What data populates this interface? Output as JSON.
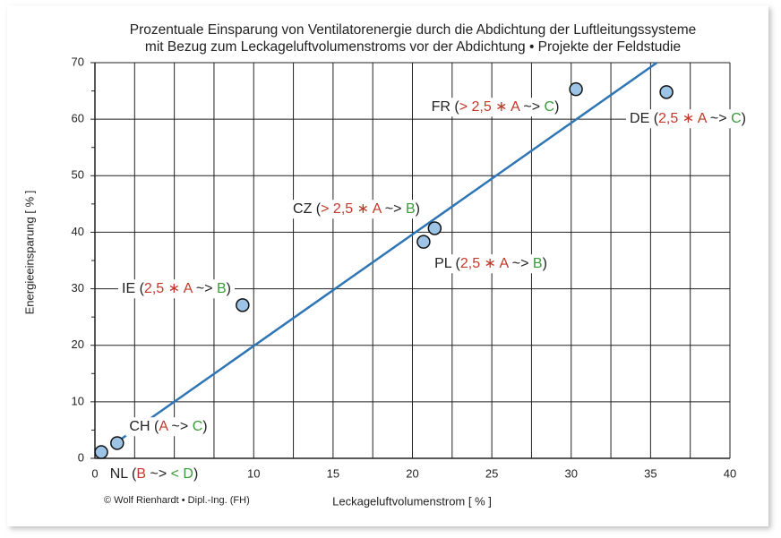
{
  "chart_data": {
    "type": "scatter",
    "title": [
      "Prozentuale Einsparung von Ventilatorenergie durch die Abdichtung der Luftleitungssysteme",
      "mit Bezug zum Leckageluftvolumenstroms vor der Abdichtung • Projekte der Feldstudie"
    ],
    "x_label": "Leckageluftvolumenstrom [ % ]",
    "y_label": "Energieeinsparung [ % ]",
    "credit": "© Wolf Rienhardt • Dipl.-Ing. (FH)",
    "xlim": [
      0,
      40
    ],
    "ylim": [
      0,
      70
    ],
    "xticks": [
      0,
      5,
      10,
      15,
      20,
      25,
      30,
      35,
      40
    ],
    "yticks": [
      0,
      10,
      20,
      30,
      40,
      50,
      60,
      70
    ],
    "grid": true,
    "series": [
      {
        "color": "#9dc3e6",
        "x": [
          0.4,
          1.4,
          9.3,
          20.7,
          21.4,
          30.3,
          36.0
        ],
        "values": [
          1.1,
          2.7,
          27.1,
          38.3,
          40.7,
          65.3,
          64.8
        ]
      }
    ],
    "trendline": {
      "color": "#2e75b6",
      "x": [
        1.7,
        35.4
      ],
      "values": [
        3.5,
        70
      ]
    },
    "annotations": [
      {
        "parts": [
          {
            "text": "FR (",
            "color": "#222"
          },
          {
            "text": "> 2,5 ∗ A",
            "color": "#c0392b"
          },
          {
            "text": " ~> ",
            "color": "#222"
          },
          {
            "text": "C",
            "color": "#3a9a3a"
          },
          {
            "text": ")",
            "color": "#222"
          }
        ]
      },
      {
        "parts": [
          {
            "text": "DE (",
            "color": "#222"
          },
          {
            "text": "2,5 ∗ A",
            "color": "#c0392b"
          },
          {
            "text": " ~> ",
            "color": "#222"
          },
          {
            "text": "C",
            "color": "#3a9a3a"
          },
          {
            "text": ")",
            "color": "#222"
          }
        ]
      },
      {
        "parts": [
          {
            "text": "CZ (",
            "color": "#222"
          },
          {
            "text": "> 2,5 ∗ A",
            "color": "#c0392b"
          },
          {
            "text": " ~> ",
            "color": "#222"
          },
          {
            "text": "B",
            "color": "#3a9a3a"
          },
          {
            "text": ")",
            "color": "#222"
          }
        ]
      },
      {
        "parts": [
          {
            "text": "PL (",
            "color": "#222"
          },
          {
            "text": "2,5 ∗ A",
            "color": "#c0392b"
          },
          {
            "text": " ~> ",
            "color": "#222"
          },
          {
            "text": "B",
            "color": "#3a9a3a"
          },
          {
            "text": ")",
            "color": "#222"
          }
        ]
      },
      {
        "parts": [
          {
            "text": "IE (",
            "color": "#222"
          },
          {
            "text": "2,5 ∗ A",
            "color": "#c0392b"
          },
          {
            "text": " ~> ",
            "color": "#222"
          },
          {
            "text": "B",
            "color": "#3a9a3a"
          },
          {
            "text": ")",
            "color": "#222"
          }
        ]
      },
      {
        "parts": [
          {
            "text": "CH (",
            "color": "#222"
          },
          {
            "text": "A",
            "color": "#c0392b"
          },
          {
            "text": " ~> ",
            "color": "#222"
          },
          {
            "text": "C",
            "color": "#3a9a3a"
          },
          {
            "text": ")",
            "color": "#222"
          }
        ]
      },
      {
        "parts": [
          {
            "text": "NL (",
            "color": "#222"
          },
          {
            "text": "B",
            "color": "#c0392b"
          },
          {
            "text": " ~> ",
            "color": "#222"
          },
          {
            "text": "< D",
            "color": "#3a9a3a"
          },
          {
            "text": ")",
            "color": "#222"
          }
        ]
      }
    ]
  }
}
